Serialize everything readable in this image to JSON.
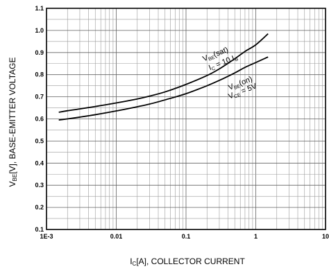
{
  "chart_data": {
    "type": "line",
    "x_scale": "log",
    "xlim": [
      0.001,
      10
    ],
    "ylim": [
      0.1,
      1.1
    ],
    "grid": true,
    "xticks": [
      {
        "value": 0.001,
        "label": "1E-3"
      },
      {
        "value": 0.01,
        "label": "0.01"
      },
      {
        "value": 0.1,
        "label": "0.1"
      },
      {
        "value": 1,
        "label": "1"
      },
      {
        "value": 10,
        "label": "10"
      }
    ],
    "yticks": [
      {
        "value": 0.1,
        "label": "0.1"
      },
      {
        "value": 0.2,
        "label": "0.2"
      },
      {
        "value": 0.3,
        "label": "0.3"
      },
      {
        "value": 0.4,
        "label": "0.4"
      },
      {
        "value": 0.5,
        "label": "0.5"
      },
      {
        "value": 0.6,
        "label": "0.6"
      },
      {
        "value": 0.7,
        "label": "0.7"
      },
      {
        "value": 0.8,
        "label": "0.8"
      },
      {
        "value": 0.9,
        "label": "0.9"
      },
      {
        "value": 1.0,
        "label": "1.0"
      },
      {
        "value": 1.1,
        "label": "1.1"
      }
    ],
    "xlabel": {
      "main": "I",
      "sub": "C",
      "rest": "[A], COLLECTOR CURRENT"
    },
    "ylabel": {
      "main": "V",
      "sub": "BE",
      "rest": "[V], BASE-EMITTER VOLTAGE"
    },
    "series": [
      {
        "label_lines": [
          {
            "main": "V",
            "sub": "BE",
            "rest": "(sat)"
          },
          {
            "main": "I",
            "sub": "C",
            "rest": " = 10 I",
            "sub2": "B"
          }
        ],
        "x": [
          0.0015,
          0.002,
          0.003,
          0.005,
          0.01,
          0.02,
          0.03,
          0.05,
          0.1,
          0.2,
          0.3,
          0.5,
          0.7,
          1.0,
          1.5
        ],
        "y": [
          0.63,
          0.637,
          0.645,
          0.656,
          0.672,
          0.69,
          0.703,
          0.722,
          0.756,
          0.796,
          0.826,
          0.872,
          0.905,
          0.935,
          0.985
        ]
      },
      {
        "label_lines": [
          {
            "main": "V",
            "sub": "BE",
            "rest": "(on)"
          },
          {
            "main": "V",
            "sub": "CE",
            "rest": " = 5V"
          }
        ],
        "x": [
          0.0015,
          0.002,
          0.003,
          0.005,
          0.01,
          0.02,
          0.03,
          0.05,
          0.1,
          0.2,
          0.3,
          0.5,
          0.7,
          1.0,
          1.5
        ],
        "y": [
          0.595,
          0.6,
          0.608,
          0.619,
          0.636,
          0.655,
          0.667,
          0.686,
          0.714,
          0.75,
          0.774,
          0.808,
          0.833,
          0.855,
          0.88
        ]
      }
    ]
  }
}
